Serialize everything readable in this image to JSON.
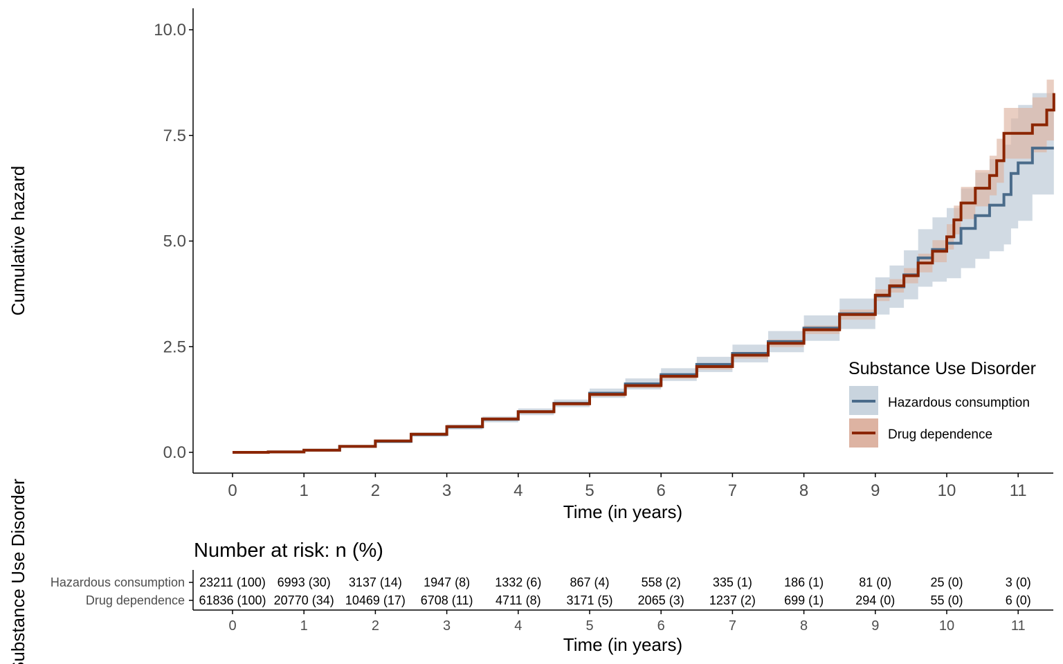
{
  "colors": {
    "hazardous": "#4a6b8a",
    "hazardous_band": "#c9d4de",
    "drug": "#8b2500",
    "drug_band": "#ddb3a2",
    "axis": "#000000",
    "tick_text": "#4d4d4d"
  },
  "legend": {
    "title": "Substance Use Disorder",
    "items": [
      {
        "label": "Hazardous consumption",
        "color": "#4a6b8a",
        "band": "#c9d4de"
      },
      {
        "label": "Drug dependence",
        "color": "#8b2500",
        "band": "#ddb3a2"
      }
    ],
    "position": "bottom-right"
  },
  "risk_table": {
    "title": "Number at risk: n (%)",
    "y_title": "Substance Use Disorder",
    "x_title": "Time (in years)",
    "rows": [
      {
        "label": "Hazardous consumption",
        "cells": [
          "23211 (100)",
          "6993 (30)",
          "3137 (14)",
          "1947 (8)",
          "1332 (6)",
          "867 (4)",
          "558 (2)",
          "335 (1)",
          "186 (1)",
          "81 (0)",
          "25 (0)",
          "3 (0)"
        ]
      },
      {
        "label": "Drug dependence",
        "cells": [
          "61836 (100)",
          "20770 (34)",
          "10469 (17)",
          "6708 (11)",
          "4711 (8)",
          "3171 (5)",
          "2065 (3)",
          "1237 (2)",
          "699 (1)",
          "294 (0)",
          "55 (0)",
          "6 (0)"
        ]
      }
    ],
    "x_ticks": [
      "0",
      "1",
      "2",
      "3",
      "4",
      "5",
      "6",
      "7",
      "8",
      "9",
      "10",
      "11"
    ]
  },
  "chart_data": {
    "type": "line",
    "title": "",
    "xlabel": "Time (in years)",
    "ylabel": "Cumulative hazard",
    "xlim": [
      -0.55,
      11.5
    ],
    "ylim": [
      -0.5,
      10.5
    ],
    "x_ticks": [
      0,
      1,
      2,
      3,
      4,
      5,
      6,
      7,
      8,
      9,
      10,
      11
    ],
    "y_ticks": [
      0,
      2.5,
      5,
      7.5,
      10
    ],
    "y_tick_labels": [
      "0.0",
      "2.5",
      "5.0",
      "7.5",
      "10.0"
    ],
    "grid": false,
    "step": true,
    "series": [
      {
        "name": "Hazardous consumption",
        "x": [
          0,
          0.5,
          1,
          1.5,
          2,
          2.5,
          3,
          3.5,
          4,
          4.5,
          5,
          5.5,
          6,
          6.5,
          7,
          7.5,
          8,
          8.5,
          9,
          9.2,
          9.4,
          9.6,
          9.8,
          10.0,
          10.2,
          10.4,
          10.6,
          10.8,
          10.9,
          11.0,
          11.2,
          11.5
        ],
        "y": [
          0,
          0.01,
          0.05,
          0.14,
          0.26,
          0.42,
          0.6,
          0.78,
          0.96,
          1.16,
          1.4,
          1.62,
          1.84,
          2.08,
          2.34,
          2.62,
          2.94,
          3.28,
          3.7,
          3.92,
          4.2,
          4.6,
          4.8,
          4.95,
          5.3,
          5.6,
          5.85,
          6.1,
          6.6,
          6.85,
          7.2,
          7.2
        ],
        "lower": [
          0,
          0.005,
          0.035,
          0.11,
          0.22,
          0.37,
          0.54,
          0.71,
          0.88,
          1.07,
          1.29,
          1.49,
          1.69,
          1.9,
          2.13,
          2.37,
          2.64,
          2.92,
          3.26,
          3.42,
          3.62,
          3.92,
          4.04,
          4.12,
          4.36,
          4.58,
          4.76,
          4.92,
          5.3,
          5.48,
          6.1,
          6.1
        ],
        "upper": [
          0,
          0.015,
          0.065,
          0.17,
          0.3,
          0.47,
          0.66,
          0.85,
          1.04,
          1.25,
          1.51,
          1.75,
          1.99,
          2.26,
          2.55,
          2.87,
          3.24,
          3.64,
          4.14,
          4.42,
          4.78,
          5.28,
          5.56,
          5.78,
          6.24,
          6.62,
          6.94,
          7.28,
          7.9,
          8.22,
          8.5,
          8.5
        ]
      },
      {
        "name": "Drug dependence",
        "x": [
          0,
          0.5,
          1,
          1.5,
          2,
          2.5,
          3,
          3.5,
          4,
          4.5,
          5,
          5.5,
          6,
          6.5,
          7,
          7.5,
          8,
          8.5,
          9,
          9.2,
          9.4,
          9.6,
          9.8,
          10.0,
          10.1,
          10.2,
          10.4,
          10.6,
          10.7,
          10.8,
          11.0,
          11.2,
          11.4,
          11.5
        ],
        "y": [
          0,
          0.01,
          0.05,
          0.14,
          0.27,
          0.43,
          0.61,
          0.79,
          0.96,
          1.15,
          1.37,
          1.58,
          1.8,
          2.03,
          2.3,
          2.58,
          2.9,
          3.26,
          3.72,
          3.94,
          4.18,
          4.48,
          4.76,
          5.1,
          5.5,
          5.9,
          6.25,
          6.55,
          6.9,
          7.55,
          7.55,
          7.75,
          8.1,
          8.5
        ],
        "lower": [
          0,
          0.008,
          0.042,
          0.125,
          0.25,
          0.405,
          0.58,
          0.755,
          0.92,
          1.105,
          1.32,
          1.525,
          1.74,
          1.96,
          2.22,
          2.49,
          2.8,
          3.14,
          3.58,
          3.78,
          4.0,
          4.26,
          4.5,
          4.8,
          5.16,
          5.52,
          5.82,
          6.08,
          6.38,
          6.95,
          6.95,
          7.1,
          7.38,
          7.7
        ],
        "upper": [
          0,
          0.012,
          0.058,
          0.155,
          0.29,
          0.455,
          0.64,
          0.825,
          1.0,
          1.195,
          1.42,
          1.635,
          1.86,
          2.1,
          2.38,
          2.67,
          3.0,
          3.38,
          3.86,
          4.1,
          4.36,
          4.7,
          5.02,
          5.4,
          5.84,
          6.28,
          6.68,
          7.02,
          7.42,
          8.15,
          8.15,
          8.4,
          8.82,
          9.8
        ]
      }
    ]
  }
}
